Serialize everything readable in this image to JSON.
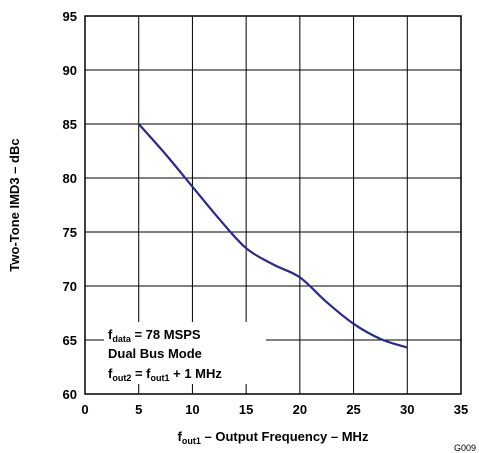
{
  "chart_data": {
    "type": "line",
    "title": "",
    "xlabel": {
      "main": "f",
      "sub": "out1",
      "rest": " – Output Frequency – MHz"
    },
    "ylabel": "Two-Tone IMD3 – dBc",
    "xlim": [
      0,
      35
    ],
    "ylim": [
      60,
      95
    ],
    "xticks": [
      0,
      5,
      10,
      15,
      20,
      25,
      30,
      35
    ],
    "yticks": [
      60,
      65,
      70,
      75,
      80,
      85,
      90,
      95
    ],
    "grid": true,
    "series": [
      {
        "color": "#2a2a8c",
        "x": [
          5,
          7.5,
          10,
          12.5,
          15,
          17.5,
          20,
          22.5,
          25,
          27.5,
          30
        ],
        "y": [
          85,
          82.2,
          79.2,
          76.2,
          73.5,
          72,
          70.8,
          68.5,
          66.5,
          65.1,
          64.3
        ]
      }
    ],
    "annotations": [
      {
        "main": "f",
        "sub": "data",
        "rest": " = 78 MSPS"
      },
      {
        "main": "Dual Bus Mode",
        "sub": "",
        "rest": ""
      },
      {
        "main": "f",
        "sub": "out2",
        "rest": " = f",
        "sub2": "out1",
        "rest2": " + 1 MHz"
      }
    ],
    "figure_code": "G009"
  }
}
